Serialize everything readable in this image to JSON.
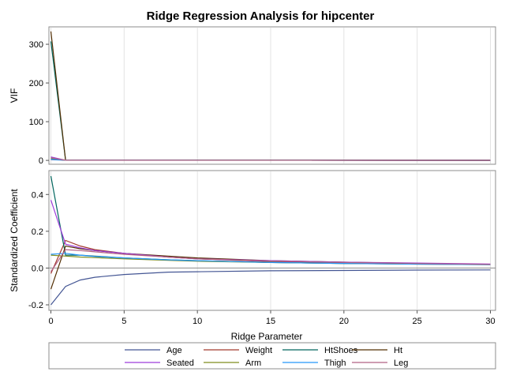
{
  "chart_data": {
    "type": "line",
    "title": "Ridge Regression Analysis for hipcenter",
    "xlabel": "Ridge Parameter",
    "xlim": [
      0,
      30
    ],
    "x_ticks": [
      0,
      5,
      10,
      15,
      20,
      25,
      30
    ],
    "grid": true,
    "legend_position": "bottom",
    "panels": [
      {
        "ylabel": "VIF",
        "ylim": [
          -10,
          345
        ],
        "y_ticks": [
          0,
          100,
          200,
          300
        ],
        "series": [
          {
            "name": "Age",
            "color": "#445694",
            "x": [
              0,
              1,
              30
            ],
            "y": [
              2,
              0.5,
              0.3
            ]
          },
          {
            "name": "Weight",
            "color": "#A23A2E",
            "x": [
              0,
              1,
              30
            ],
            "y": [
              3.6,
              0.4,
              0.3
            ]
          },
          {
            "name": "HtShoes",
            "color": "#01665E",
            "x": [
              0,
              1,
              30
            ],
            "y": [
              307.4,
              0.6,
              0.3
            ]
          },
          {
            "name": "Ht",
            "color": "#543005",
            "x": [
              0,
              1,
              30
            ],
            "y": [
              333.1,
              0.6,
              0.3
            ]
          },
          {
            "name": "Seated",
            "color": "#9D3CDB",
            "x": [
              0,
              1,
              30
            ],
            "y": [
              8.9,
              0.5,
              0.3
            ]
          },
          {
            "name": "Arm",
            "color": "#7F8E1F",
            "x": [
              0,
              1,
              30
            ],
            "y": [
              4.5,
              0.4,
              0.3
            ]
          },
          {
            "name": "Thigh",
            "color": "#2597FA",
            "x": [
              0,
              1,
              30
            ],
            "y": [
              2.8,
              0.4,
              0.3
            ]
          },
          {
            "name": "Leg",
            "color": "#B26084",
            "x": [
              0,
              1,
              30
            ],
            "y": [
              6.7,
              0.4,
              0.3
            ]
          }
        ]
      },
      {
        "ylabel": "Standardized Coefficient",
        "ylim": [
          -0.23,
          0.53
        ],
        "y_ticks": [
          -0.2,
          0.0,
          0.2,
          0.4
        ],
        "y_tick_labels": [
          "-0.2",
          "0.0",
          "0.2",
          "0.4"
        ],
        "series": [
          {
            "name": "Age",
            "color": "#445694",
            "x": [
              0,
              1,
              2,
              3,
              5,
              8,
              10,
              15,
              20,
              25,
              30
            ],
            "y": [
              -0.2,
              -0.1,
              -0.065,
              -0.05,
              -0.035,
              -0.022,
              -0.02,
              -0.015,
              -0.013,
              -0.011,
              -0.01
            ]
          },
          {
            "name": "Weight",
            "color": "#A23A2E",
            "x": [
              0,
              1,
              2,
              3,
              5,
              8,
              10,
              15,
              20,
              25,
              30
            ],
            "y": [
              -0.03,
              0.15,
              0.12,
              0.1,
              0.08,
              0.06,
              0.05,
              0.035,
              0.03,
              0.025,
              0.02
            ]
          },
          {
            "name": "HtShoes",
            "color": "#01665E",
            "x": [
              0,
              1,
              2,
              3,
              5,
              8,
              10,
              15,
              20,
              25,
              30
            ],
            "y": [
              0.5,
              0.07,
              0.07,
              0.065,
              0.055,
              0.045,
              0.04,
              0.03,
              0.025,
              0.022,
              0.02
            ]
          },
          {
            "name": "Ht",
            "color": "#543005",
            "x": [
              0,
              1,
              2,
              3,
              5,
              8,
              10,
              15,
              20,
              25,
              30
            ],
            "y": [
              -0.115,
              0.12,
              0.105,
              0.095,
              0.08,
              0.065,
              0.055,
              0.04,
              0.032,
              0.025,
              0.02
            ]
          },
          {
            "name": "Seated",
            "color": "#9D3CDB",
            "x": [
              0,
              1,
              2,
              3,
              5,
              8,
              10,
              15,
              20,
              25,
              30
            ],
            "y": [
              0.37,
              0.13,
              0.11,
              0.095,
              0.08,
              0.06,
              0.05,
              0.04,
              0.032,
              0.027,
              0.022
            ]
          },
          {
            "name": "Arm",
            "color": "#7F8E1F",
            "x": [
              0,
              1,
              2,
              3,
              5,
              8,
              10,
              15,
              20,
              25,
              30
            ],
            "y": [
              0.07,
              0.065,
              0.06,
              0.057,
              0.05,
              0.042,
              0.037,
              0.03,
              0.025,
              0.021,
              0.018
            ]
          },
          {
            "name": "Thigh",
            "color": "#2597FA",
            "x": [
              0,
              1,
              2,
              3,
              5,
              8,
              10,
              15,
              20,
              25,
              30
            ],
            "y": [
              0.075,
              0.08,
              0.07,
              0.063,
              0.055,
              0.045,
              0.04,
              0.03,
              0.025,
              0.021,
              0.018
            ]
          },
          {
            "name": "Leg",
            "color": "#B26084",
            "x": [
              0,
              1,
              2,
              3,
              5,
              8,
              10,
              15,
              20,
              25,
              30
            ],
            "y": [
              -0.02,
              0.1,
              0.095,
              0.088,
              0.075,
              0.06,
              0.05,
              0.038,
              0.03,
              0.025,
              0.02
            ]
          }
        ]
      }
    ]
  },
  "legend": {
    "items": [
      {
        "name": "Age",
        "color": "#445694"
      },
      {
        "name": "Weight",
        "color": "#A23A2E"
      },
      {
        "name": "HtShoes",
        "color": "#01665E"
      },
      {
        "name": "Ht",
        "color": "#543005"
      },
      {
        "name": "Seated",
        "color": "#9D3CDB"
      },
      {
        "name": "Arm",
        "color": "#7F8E1F"
      },
      {
        "name": "Thigh",
        "color": "#2597FA"
      },
      {
        "name": "Leg",
        "color": "#B26084"
      }
    ]
  }
}
